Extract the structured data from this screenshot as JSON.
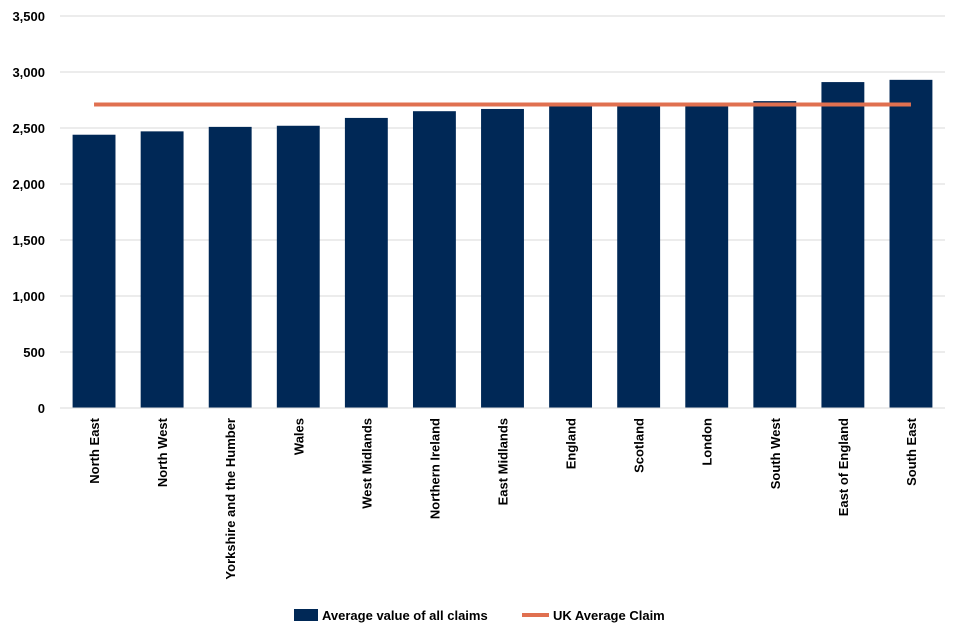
{
  "chart_data": {
    "type": "bar",
    "categories": [
      "North East",
      "North West",
      "Yorkshire and the Humber",
      "Wales",
      "West Midlands",
      "Northern Ireland",
      "East Midlands",
      "England",
      "Scotland",
      "London",
      "South West",
      "East of England",
      "South East"
    ],
    "series": [
      {
        "name": "Average value of all claims",
        "type": "bar",
        "color": "#002856",
        "values": [
          2440,
          2470,
          2510,
          2520,
          2590,
          2650,
          2670,
          2700,
          2700,
          2710,
          2740,
          2910,
          2930
        ]
      },
      {
        "name": "UK Average Claim",
        "type": "line",
        "color": "#E07050",
        "values": [
          2710,
          2710,
          2710,
          2710,
          2710,
          2710,
          2710,
          2710,
          2710,
          2710,
          2710,
          2710,
          2710
        ]
      }
    ],
    "yticks": [
      "0",
      "500",
      "1,000",
      "1,500",
      "2,000",
      "2,500",
      "3,000",
      "3,500"
    ],
    "ylim": [
      0,
      3500
    ],
    "grid": true,
    "legend": "bottom",
    "title": "",
    "xlabel": "",
    "ylabel": ""
  }
}
